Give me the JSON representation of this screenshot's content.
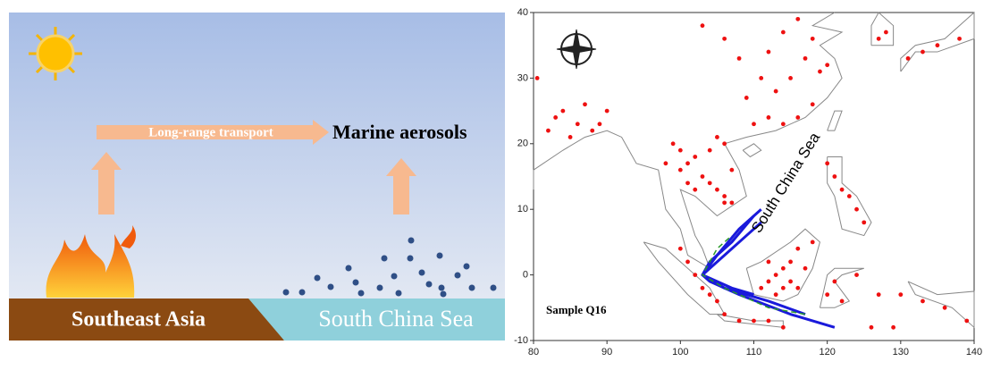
{
  "diagram": {
    "transport_label": "Long-range transport",
    "aerosol_label": "Marine aerosols",
    "land_label": "Southeast Asia",
    "sea_label": "South China Sea"
  },
  "map": {
    "xlim": [
      80,
      140
    ],
    "ylim": [
      -10,
      40
    ],
    "xticks": [
      80,
      90,
      100,
      110,
      120,
      130,
      140
    ],
    "yticks": [
      -10,
      0,
      10,
      20,
      30,
      40
    ],
    "sea_label": "South China Sea",
    "sample_label": "Sample Q16",
    "fire_color": "#ee1111",
    "fire_points": [
      [
        100,
        16
      ],
      [
        101,
        17
      ],
      [
        102,
        18
      ],
      [
        103,
        15
      ],
      [
        104,
        14
      ],
      [
        105,
        13
      ],
      [
        106,
        12
      ],
      [
        104,
        19
      ],
      [
        105,
        21
      ],
      [
        106,
        20
      ],
      [
        107,
        16
      ],
      [
        102,
        13
      ],
      [
        101,
        14
      ],
      [
        99,
        20
      ],
      [
        100,
        19
      ],
      [
        98,
        17
      ],
      [
        106,
        11
      ],
      [
        107,
        11
      ],
      [
        110,
        23
      ],
      [
        112,
        24
      ],
      [
        114,
        23
      ],
      [
        116,
        24
      ],
      [
        118,
        26
      ],
      [
        113,
        28
      ],
      [
        115,
        30
      ],
      [
        117,
        33
      ],
      [
        119,
        31
      ],
      [
        111,
        30
      ],
      [
        109,
        27
      ],
      [
        120,
        32
      ],
      [
        112,
        34
      ],
      [
        108,
        33
      ],
      [
        114,
        37
      ],
      [
        116,
        39
      ],
      [
        118,
        36
      ],
      [
        103,
        38
      ],
      [
        106,
        36
      ],
      [
        84,
        25
      ],
      [
        86,
        23
      ],
      [
        88,
        22
      ],
      [
        85,
        21
      ],
      [
        87,
        26
      ],
      [
        83,
        24
      ],
      [
        89,
        23
      ],
      [
        90,
        25
      ],
      [
        82,
        22
      ],
      [
        80.5,
        30
      ],
      [
        100,
        4
      ],
      [
        101,
        2
      ],
      [
        102,
        0
      ],
      [
        103,
        -2
      ],
      [
        104,
        -3
      ],
      [
        105,
        -4
      ],
      [
        106,
        -6
      ],
      [
        108,
        -7
      ],
      [
        110,
        -7
      ],
      [
        112,
        -7
      ],
      [
        114,
        -8
      ],
      [
        111,
        -2
      ],
      [
        112,
        -1
      ],
      [
        113,
        0
      ],
      [
        114,
        1
      ],
      [
        115,
        -1
      ],
      [
        116,
        -2
      ],
      [
        113,
        -3
      ],
      [
        114,
        -2
      ],
      [
        115,
        2
      ],
      [
        117,
        1
      ],
      [
        116,
        4
      ],
      [
        118,
        5
      ],
      [
        112,
        2
      ],
      [
        121,
        15
      ],
      [
        123,
        12
      ],
      [
        124,
        10
      ],
      [
        122,
        13
      ],
      [
        125,
        8
      ],
      [
        120,
        17
      ],
      [
        120,
        -3
      ],
      [
        121,
        -1
      ],
      [
        122,
        -4
      ],
      [
        124,
        0
      ],
      [
        127,
        -3
      ],
      [
        130,
        -3
      ],
      [
        133,
        -4
      ],
      [
        136,
        -5
      ],
      [
        139,
        -7
      ],
      [
        126,
        -8
      ],
      [
        129,
        -8
      ],
      [
        131,
        33
      ],
      [
        133,
        34
      ],
      [
        135,
        35
      ],
      [
        138,
        36
      ],
      [
        127,
        36
      ],
      [
        128,
        37
      ]
    ],
    "trajectories": [
      {
        "color": "#1a1adb",
        "lon": [
          121,
          115,
          108,
          104,
          103,
          105,
          108,
          111
        ],
        "lat": [
          -8,
          -6,
          -3,
          -1,
          0,
          3,
          7,
          10
        ]
      },
      {
        "color": "#1a1adb",
        "lon": [
          117,
          112,
          106,
          103,
          104,
          107,
          110
        ],
        "lat": [
          -6,
          -4,
          -2,
          0,
          2,
          5,
          9
        ]
      },
      {
        "color": "#1a1adb",
        "lon": [
          110,
          107,
          104,
          103,
          106,
          109,
          111
        ],
        "lat": [
          -3,
          -2,
          -0.5,
          0,
          3,
          6,
          8
        ]
      },
      {
        "color": "#2a9a2a",
        "lon": [
          117,
          112,
          106,
          103,
          105,
          107
        ],
        "lat": [
          -6,
          -5,
          -2,
          0,
          4,
          6
        ]
      }
    ]
  }
}
